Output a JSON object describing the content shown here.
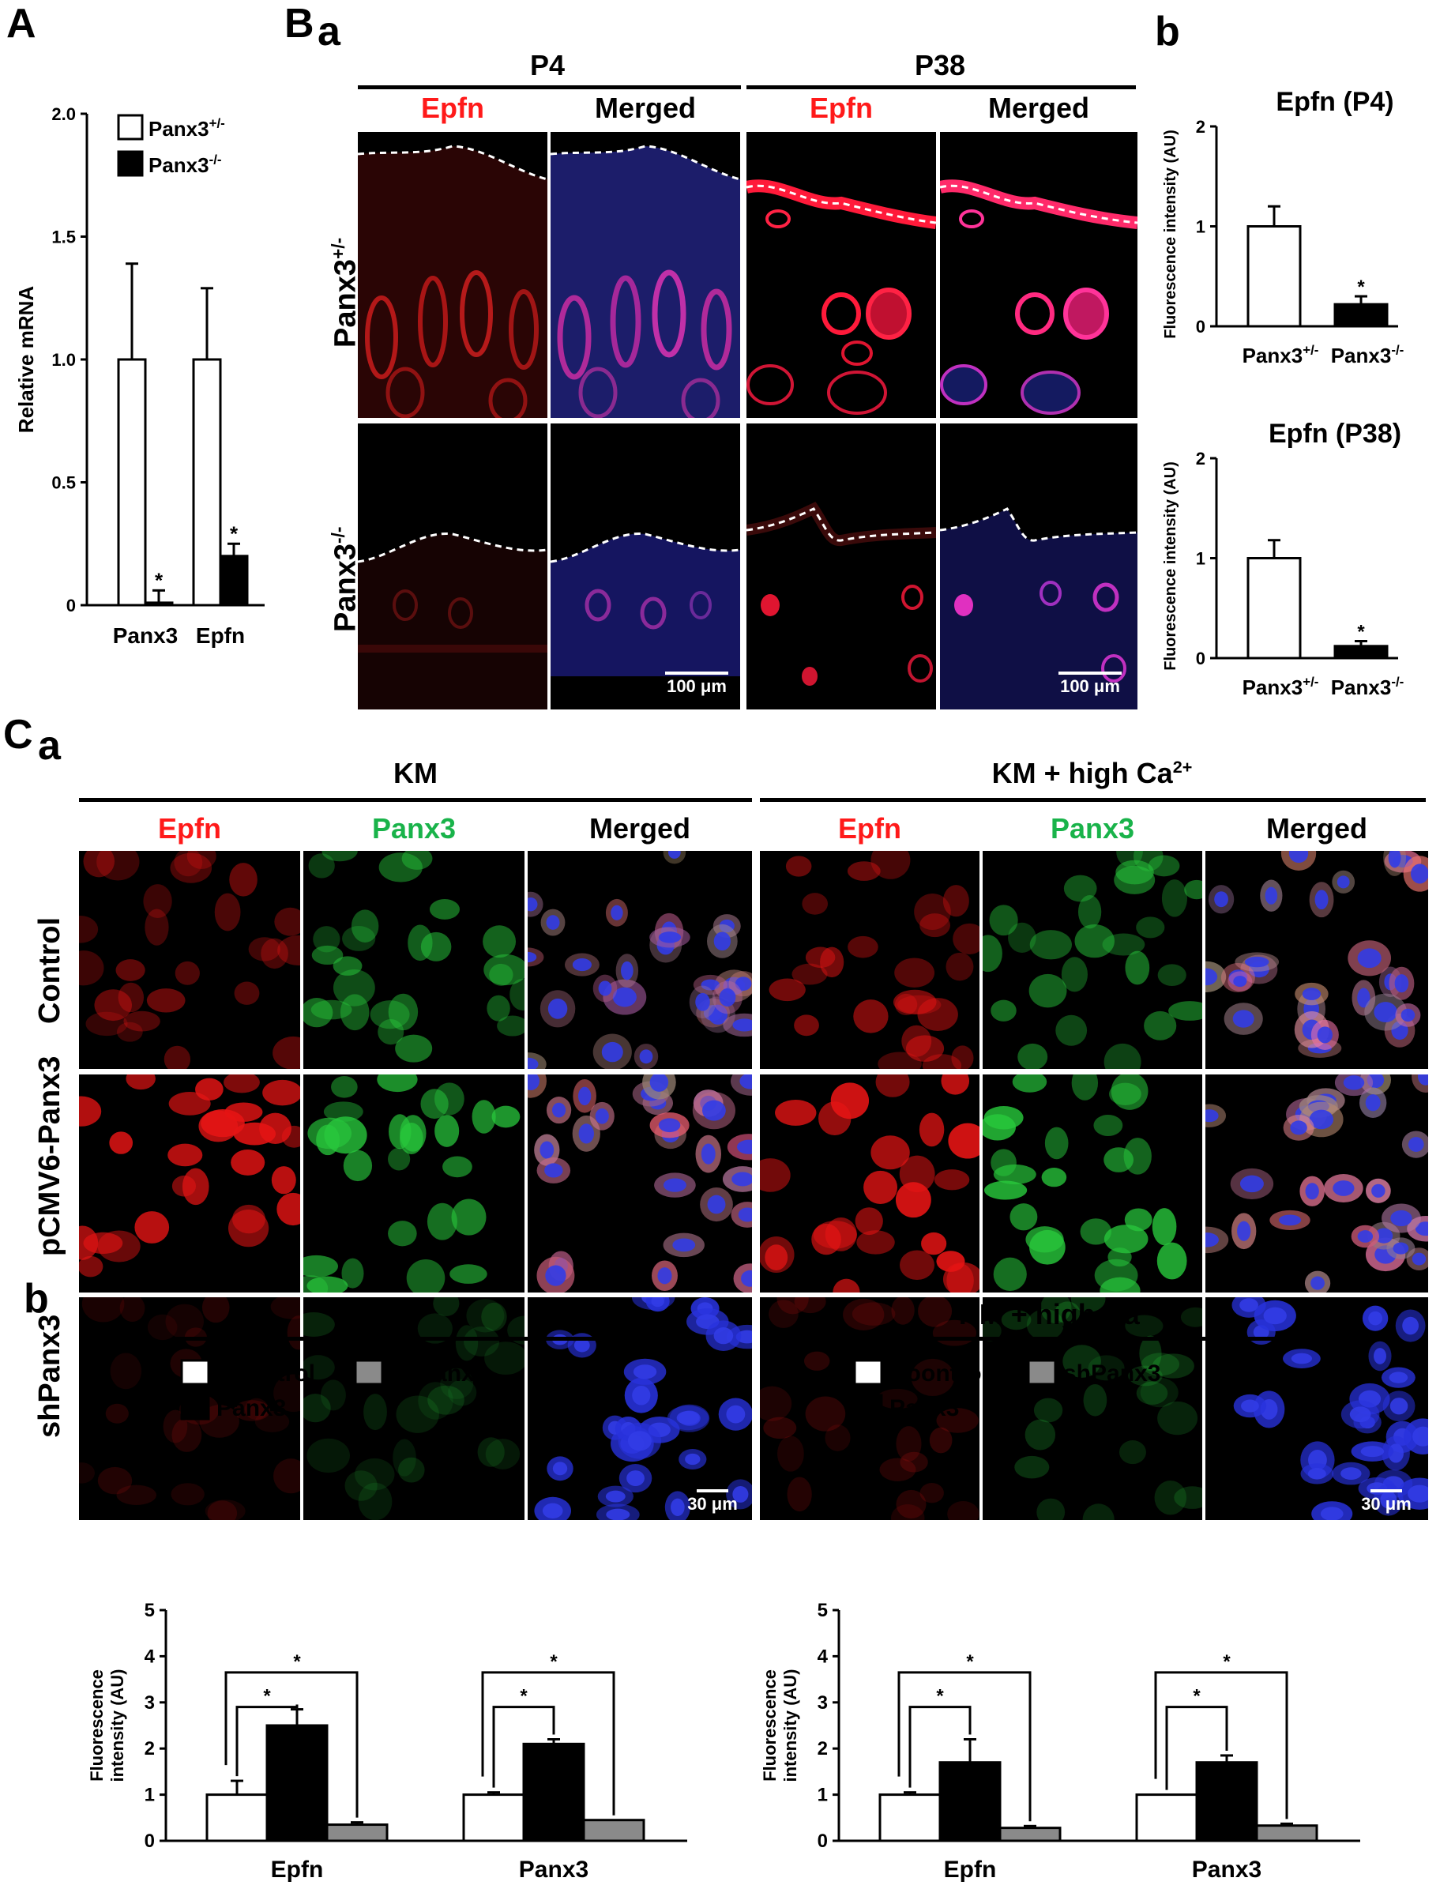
{
  "panel_labels": {
    "A": "A",
    "B": "B",
    "Ba": "a",
    "Bb": "b",
    "C": "C",
    "Ca": "a",
    "Cb": "b"
  },
  "panelB": {
    "groups": [
      "P4",
      "P38"
    ],
    "col_headers": [
      "Epfn",
      "Merged",
      "Epfn",
      "Merged"
    ],
    "row_labels": {
      "het_base": "Panx3",
      "het_sup": "+/-",
      "ko_base": "Panx3",
      "ko_sup": "-/-"
    },
    "scale_bar": "100 μm"
  },
  "panelC": {
    "groups": [
      "KM",
      "KM + high Ca"
    ],
    "group2_sup": "2+",
    "col_headers": [
      "Epfn",
      "Panx3",
      "Merged",
      "Epfn",
      "Panx3",
      "Merged"
    ],
    "row_labels": [
      "Control",
      "pCMV6-Panx3",
      "shPanx3"
    ],
    "scale_bar": "30 μm"
  },
  "colors": {
    "red": "#ff1a1a",
    "green": "#19b34a",
    "gray": "#8a8a8a",
    "black": "#000000"
  },
  "chart_data": [
    {
      "id": "A",
      "type": "bar",
      "categories": [
        "Panx3",
        "Epfn"
      ],
      "ylabel": "Relative mRNA",
      "ylim": [
        0,
        2.0
      ],
      "yticks": [
        "0",
        "0.5",
        "1.0",
        "1.5",
        "2.0"
      ],
      "legend": {
        "het_base": "Panx3",
        "het_sup": "+/-",
        "ko_base": "Panx3",
        "ko_sup": "-/-"
      },
      "series": [
        {
          "fill": "white",
          "values": [
            1.0,
            1.0
          ],
          "errors": [
            0.39,
            0.29
          ],
          "stars": [
            "",
            ""
          ]
        },
        {
          "fill": "black",
          "values": [
            0.01,
            0.2
          ],
          "errors": [
            0.05,
            0.05
          ],
          "stars": [
            "*",
            "*"
          ]
        }
      ]
    },
    {
      "id": "Bb1",
      "type": "bar",
      "title": "Epfn (P4)",
      "ylabel": "Fluorescence intensity (AU)",
      "ylim": [
        0,
        2
      ],
      "yticks": [
        "0",
        "1",
        "2"
      ],
      "categories": [
        {
          "base": "Panx3",
          "sup": "+/-"
        },
        {
          "base": "Panx3",
          "sup": "-/-"
        }
      ],
      "values": [
        1.0,
        0.22
      ],
      "errors": [
        0.2,
        0.08
      ],
      "fills": [
        "white",
        "black"
      ],
      "stars": [
        "",
        "*"
      ]
    },
    {
      "id": "Bb2",
      "type": "bar",
      "title": "Epfn (P38)",
      "ylabel": "Fluorescence intensity (AU)",
      "ylim": [
        0,
        2
      ],
      "yticks": [
        "0",
        "1",
        "2"
      ],
      "categories": [
        {
          "base": "Panx3",
          "sup": "+/-"
        },
        {
          "base": "Panx3",
          "sup": "-/-"
        }
      ],
      "values": [
        1.0,
        0.12
      ],
      "errors": [
        0.18,
        0.05
      ],
      "fills": [
        "white",
        "black"
      ],
      "stars": [
        "",
        "*"
      ]
    },
    {
      "id": "Cb1",
      "type": "bar",
      "title": "KM",
      "ylabel": [
        "Fluorescence",
        "intensity (AU)"
      ],
      "ylim": [
        0,
        5
      ],
      "yticks": [
        "0",
        "1",
        "2",
        "3",
        "4",
        "5"
      ],
      "categories": [
        "Epfn",
        "Panx3"
      ],
      "legend": [
        "Coontrol",
        "shPanx3",
        "Panx3"
      ],
      "series": [
        {
          "name": "Coontrol",
          "fill": "white",
          "values": [
            1.0,
            1.0
          ],
          "errors": [
            0.3,
            0.05
          ]
        },
        {
          "name": "Panx3",
          "fill": "black",
          "values": [
            2.5,
            2.1
          ],
          "errors": [
            0.35,
            0.1
          ]
        },
        {
          "name": "shPanx3",
          "fill": "gray",
          "values": [
            0.35,
            0.45
          ],
          "errors": [
            0.05,
            0.0
          ]
        }
      ],
      "significance": "*"
    },
    {
      "id": "Cb2",
      "type": "bar",
      "title": "KM + high Ca",
      "title_sup": "2+",
      "ylabel": [
        "Fluorescence",
        "intensity (AU)"
      ],
      "ylim": [
        0,
        5
      ],
      "yticks": [
        "0",
        "1",
        "2",
        "3",
        "4",
        "5"
      ],
      "categories": [
        "Epfn",
        "Panx3"
      ],
      "legend": [
        "Coontrol",
        "shPanx3",
        "Panx3"
      ],
      "series": [
        {
          "name": "Coontrol",
          "fill": "white",
          "values": [
            1.0,
            1.0
          ],
          "errors": [
            0.05,
            0.0
          ]
        },
        {
          "name": "Panx3",
          "fill": "black",
          "values": [
            1.7,
            1.7
          ],
          "errors": [
            0.5,
            0.15
          ]
        },
        {
          "name": "shPanx3",
          "fill": "gray",
          "values": [
            0.28,
            0.33
          ],
          "errors": [
            0.04,
            0.04
          ]
        }
      ],
      "significance": "*"
    }
  ]
}
